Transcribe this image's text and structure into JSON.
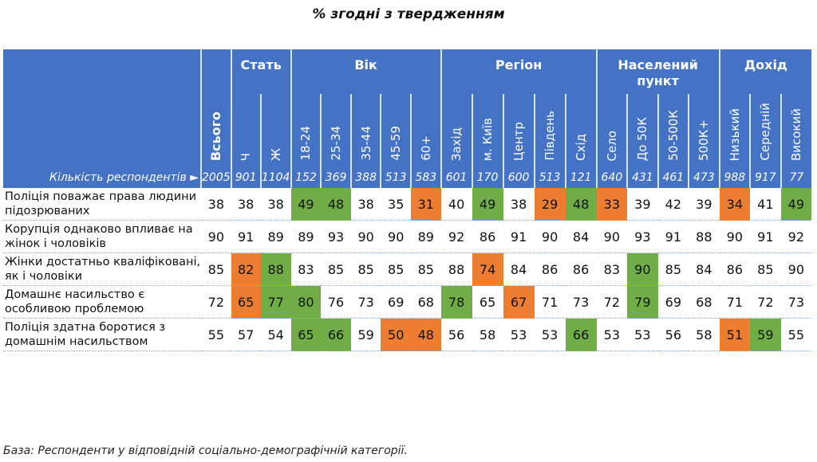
{
  "title": "% згодні з твердженням",
  "colors": {
    "header": "#4472C4",
    "high": "#70AD47",
    "low": "#ED7D31"
  },
  "header": {
    "total_label": "Всього",
    "count_label": "Кількість респондентів ►",
    "total_count": "2005",
    "groups": [
      {
        "label": "Стать",
        "columns": [
          {
            "label": "Ч",
            "n": "901"
          },
          {
            "label": "Ж",
            "n": "1104"
          }
        ]
      },
      {
        "label": "Вік",
        "columns": [
          {
            "label": "18-24",
            "n": "152"
          },
          {
            "label": "25-34",
            "n": "369"
          },
          {
            "label": "35-44",
            "n": "388"
          },
          {
            "label": "45-59",
            "n": "513"
          },
          {
            "label": "60+",
            "n": "583"
          }
        ]
      },
      {
        "label": "Регіон",
        "columns": [
          {
            "label": "Захід",
            "n": "601"
          },
          {
            "label": "м. Київ",
            "n": "170"
          },
          {
            "label": "Центр",
            "n": "600"
          },
          {
            "label": "Південь",
            "n": "513"
          },
          {
            "label": "Схід",
            "n": "121"
          }
        ]
      },
      {
        "label": "Населений пункт",
        "columns": [
          {
            "label": "Село",
            "n": "640"
          },
          {
            "label": "До 50К",
            "n": "431"
          },
          {
            "label": "50-500К",
            "n": "461"
          },
          {
            "label": "500К+",
            "n": "473"
          }
        ]
      },
      {
        "label": "Дохід",
        "columns": [
          {
            "label": "Низький",
            "n": "988"
          },
          {
            "label": "Середній",
            "n": "917"
          },
          {
            "label": "Високий",
            "n": "77"
          }
        ]
      }
    ]
  },
  "rows": [
    {
      "label": "Поліція поважає права людини підозрюваних",
      "values": [
        "38",
        "38",
        "38",
        "49",
        "48",
        "38",
        "35",
        "31",
        "40",
        "49",
        "38",
        "29",
        "48",
        "33",
        "39",
        "42",
        "39",
        "34",
        "41",
        "49"
      ],
      "highlight": [
        "",
        "",
        "",
        "g",
        "g",
        "",
        "",
        "o",
        "",
        "g",
        "",
        "o",
        "g",
        "o",
        "",
        "",
        "",
        "o",
        "",
        "g"
      ]
    },
    {
      "label": "Корупція однаково впливає на жінок і чоловіків",
      "values": [
        "90",
        "91",
        "89",
        "89",
        "93",
        "90",
        "90",
        "89",
        "92",
        "86",
        "91",
        "90",
        "84",
        "90",
        "93",
        "91",
        "88",
        "90",
        "91",
        "92"
      ],
      "highlight": [
        "",
        "",
        "",
        "",
        "",
        "",
        "",
        "",
        "",
        "",
        "",
        "",
        "",
        "",
        "",
        "",
        "",
        "",
        "",
        ""
      ]
    },
    {
      "label": "Жінки достатньо кваліфіковані, як і чоловіки",
      "values": [
        "85",
        "82",
        "88",
        "83",
        "85",
        "85",
        "85",
        "85",
        "88",
        "74",
        "84",
        "86",
        "86",
        "83",
        "90",
        "85",
        "84",
        "86",
        "85",
        "90"
      ],
      "highlight": [
        "",
        "o",
        "g",
        "",
        "",
        "",
        "",
        "",
        "",
        "o",
        "",
        "",
        "",
        "",
        "g",
        "",
        "",
        "",
        "",
        ""
      ]
    },
    {
      "label": "Домашнє насильство є особливою проблемою",
      "values": [
        "72",
        "65",
        "77",
        "80",
        "76",
        "73",
        "69",
        "68",
        "78",
        "65",
        "67",
        "71",
        "73",
        "72",
        "79",
        "69",
        "68",
        "71",
        "72",
        "73"
      ],
      "highlight": [
        "",
        "o",
        "g",
        "g",
        "",
        "",
        "",
        "",
        "g",
        "",
        "o",
        "",
        "",
        "",
        "g",
        "",
        "",
        "",
        "",
        ""
      ]
    },
    {
      "label": "Поліція здатна боротися з домашнім насильством",
      "values": [
        "55",
        "57",
        "54",
        "65",
        "66",
        "59",
        "50",
        "48",
        "56",
        "58",
        "53",
        "53",
        "66",
        "53",
        "53",
        "56",
        "58",
        "51",
        "59",
        "55"
      ],
      "highlight": [
        "",
        "",
        "",
        "g",
        "g",
        "",
        "o",
        "o",
        "",
        "",
        "",
        "",
        "g",
        "",
        "",
        "",
        "",
        "o",
        "g",
        ""
      ]
    }
  ],
  "footer": "База: Респонденти у відповідній соціально-демографічній категорії."
}
